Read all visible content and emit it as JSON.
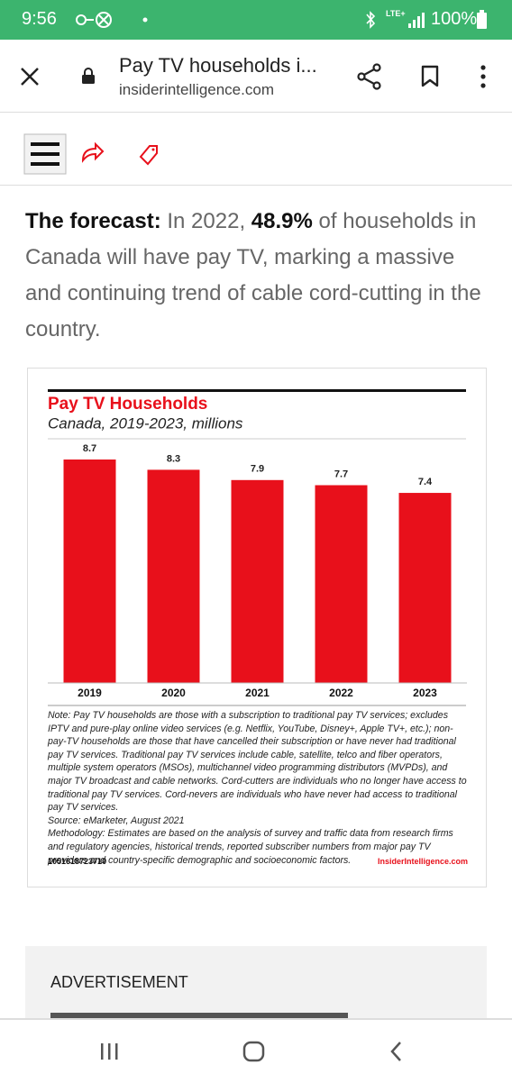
{
  "status_bar": {
    "time": "9:56",
    "network": "LTE+",
    "battery": "100%"
  },
  "browser": {
    "title": "Pay TV households i...",
    "url": "insiderintelligence.com"
  },
  "article": {
    "lead_label": "The forecast:",
    "text_1": "In 2022,",
    "highlight": "48.9%",
    "text_2": "of households in Canada will have pay TV, marking a massive and continuing trend of cable cord-cutting in the country."
  },
  "chart_data": {
    "type": "bar",
    "title": "Pay TV Households",
    "subtitle": "Canada, 2019-2023, millions",
    "categories": [
      "2019",
      "2020",
      "2021",
      "2022",
      "2023"
    ],
    "values": [
      8.7,
      8.3,
      7.9,
      7.7,
      7.4
    ],
    "color": "#e8101b",
    "note": "Note: Pay TV households are those with a subscription to traditional pay TV services; excludes IPTV and pure-play online video services (e.g. Netflix, YouTube, Disney+, Apple TV+, etc.); non-pay-TV households are those that have cancelled their subscription or have never had traditional pay TV services. Traditional pay TV services include cable, satellite, telco and fiber operators, multiple system operators (MSOs), multichannel video programming distributors (MVPDs), and major TV broadcast and cable networks. Cord-cutters are individuals who no longer have access to traditional pay TV services. Cord-nevers are individuals who have never had access to traditional pay TV services.",
    "source": "Source: eMarketer, August 2021",
    "methodology": "Methodology: Estimates are based on the analysis of survey and traffic data from research firms and regulatory agencies, historical trends, reported subscriber numbers from major pay TV providers and country-specific demographic and socioeconomic factors.",
    "chart_id": "1051618723710",
    "brand": "InsiderIntelligence.com"
  },
  "advertisement": {
    "label": "ADVERTISEMENT"
  }
}
